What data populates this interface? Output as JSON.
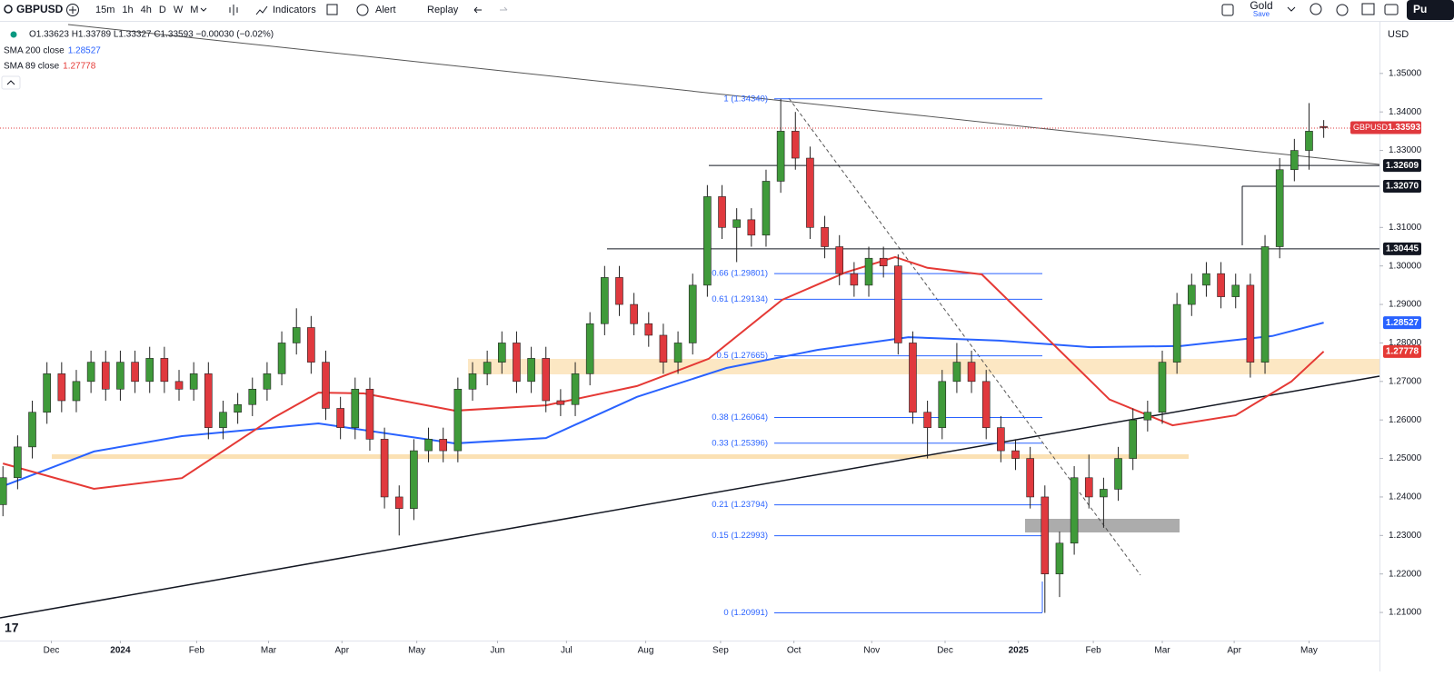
{
  "toolbar": {
    "intervals": [
      "15m",
      "1h",
      "4h",
      "D",
      "W",
      "M"
    ],
    "buttons": [
      "Indicators",
      "Alert",
      "Replay"
    ],
    "layout_name": "Gold",
    "layout_action": "Save",
    "publish": "Pu"
  },
  "chart_data": {
    "type": "candlestick",
    "currency": "USD",
    "ohlc_legend": "O1.33623 H1.33789 L1.33327 C1.33593 −0.00030 (−0.02%)",
    "series": [
      {
        "name": "GBPUSD",
        "up_color": "#3f9a3a",
        "down_color": "#e0393e",
        "open": [
          1.238,
          1.245,
          1.253,
          1.262,
          1.272,
          1.265,
          1.27,
          1.275,
          1.268,
          1.275,
          1.27,
          1.276,
          1.27,
          1.268,
          1.272,
          1.258,
          1.262,
          1.264,
          1.268,
          1.272,
          1.28,
          1.284,
          1.275,
          1.263,
          1.258,
          1.268,
          1.255,
          1.24,
          1.237,
          1.252,
          1.255,
          1.252,
          1.268,
          1.272,
          1.275,
          1.28,
          1.27,
          1.276,
          1.265,
          1.264,
          1.272,
          1.285,
          1.297,
          1.29,
          1.285,
          1.282,
          1.275,
          1.28,
          1.295,
          1.318,
          1.31,
          1.312,
          1.308,
          1.322,
          1.335,
          1.328,
          1.31,
          1.305,
          1.298,
          1.295,
          1.302,
          1.3,
          1.28,
          1.262,
          1.258,
          1.27,
          1.275,
          1.27,
          1.258,
          1.252,
          1.25,
          1.24,
          1.22,
          1.228,
          1.245,
          1.24,
          1.242,
          1.25,
          1.26,
          1.262,
          1.275,
          1.29,
          1.295,
          1.298,
          1.292,
          1.295,
          1.275,
          1.305,
          1.325,
          1.33,
          1.33623
        ],
        "high": [
          1.248,
          1.256,
          1.265,
          1.275,
          1.275,
          1.273,
          1.278,
          1.278,
          1.278,
          1.278,
          1.279,
          1.279,
          1.273,
          1.275,
          1.275,
          1.265,
          1.267,
          1.271,
          1.275,
          1.283,
          1.289,
          1.287,
          1.278,
          1.266,
          1.271,
          1.271,
          1.258,
          1.243,
          1.255,
          1.258,
          1.258,
          1.271,
          1.275,
          1.278,
          1.283,
          1.283,
          1.279,
          1.279,
          1.268,
          1.275,
          1.288,
          1.3,
          1.3,
          1.293,
          1.288,
          1.285,
          1.283,
          1.298,
          1.321,
          1.321,
          1.315,
          1.315,
          1.325,
          1.3434,
          1.34,
          1.331,
          1.313,
          1.308,
          1.301,
          1.305,
          1.305,
          1.303,
          1.283,
          1.265,
          1.273,
          1.28,
          1.278,
          1.273,
          1.261,
          1.255,
          1.253,
          1.243,
          1.231,
          1.248,
          1.251,
          1.245,
          1.253,
          1.263,
          1.265,
          1.278,
          1.293,
          1.298,
          1.301,
          1.301,
          1.298,
          1.298,
          1.308,
          1.328,
          1.333,
          1.3423,
          1.33789
        ],
        "low": [
          1.235,
          1.242,
          1.25,
          1.259,
          1.262,
          1.262,
          1.267,
          1.265,
          1.265,
          1.267,
          1.267,
          1.267,
          1.265,
          1.265,
          1.255,
          1.255,
          1.259,
          1.261,
          1.265,
          1.269,
          1.277,
          1.272,
          1.26,
          1.255,
          1.255,
          1.252,
          1.237,
          1.23,
          1.234,
          1.249,
          1.249,
          1.249,
          1.265,
          1.269,
          1.272,
          1.267,
          1.267,
          1.262,
          1.261,
          1.261,
          1.269,
          1.282,
          1.287,
          1.282,
          1.279,
          1.272,
          1.272,
          1.277,
          1.292,
          1.307,
          1.301,
          1.305,
          1.305,
          1.319,
          1.325,
          1.307,
          1.302,
          1.295,
          1.292,
          1.292,
          1.297,
          1.277,
          1.259,
          1.25,
          1.255,
          1.267,
          1.267,
          1.255,
          1.249,
          1.247,
          1.237,
          1.20991,
          1.214,
          1.225,
          1.237,
          1.232,
          1.239,
          1.247,
          1.257,
          1.259,
          1.272,
          1.287,
          1.292,
          1.289,
          1.289,
          1.271,
          1.272,
          1.302,
          1.322,
          1.325,
          1.33327
        ],
        "close": [
          1.245,
          1.253,
          1.262,
          1.272,
          1.265,
          1.27,
          1.275,
          1.268,
          1.275,
          1.27,
          1.276,
          1.27,
          1.268,
          1.272,
          1.258,
          1.262,
          1.264,
          1.268,
          1.272,
          1.28,
          1.284,
          1.275,
          1.263,
          1.258,
          1.268,
          1.255,
          1.24,
          1.237,
          1.252,
          1.255,
          1.252,
          1.268,
          1.272,
          1.275,
          1.28,
          1.27,
          1.276,
          1.265,
          1.264,
          1.272,
          1.285,
          1.297,
          1.29,
          1.285,
          1.282,
          1.275,
          1.28,
          1.295,
          1.318,
          1.31,
          1.312,
          1.308,
          1.322,
          1.335,
          1.328,
          1.31,
          1.305,
          1.298,
          1.295,
          1.302,
          1.3,
          1.28,
          1.262,
          1.258,
          1.27,
          1.275,
          1.27,
          1.258,
          1.252,
          1.25,
          1.24,
          1.22,
          1.228,
          1.245,
          1.24,
          1.242,
          1.25,
          1.26,
          1.262,
          1.275,
          1.29,
          1.295,
          1.298,
          1.292,
          1.295,
          1.275,
          1.305,
          1.325,
          1.33,
          1.335,
          1.33593
        ]
      }
    ],
    "indicators": [
      {
        "name": "SMA 200 close",
        "last": 1.28527,
        "color": "#2962ff",
        "x": [
          0,
          6.2,
          12.2,
          21.5,
          30.8,
          37,
          43.2,
          49.3,
          55.5,
          61.7,
          67.9,
          74.1,
          80.3,
          86.5,
          90
        ],
        "values": [
          1.2428,
          1.2518,
          1.2558,
          1.2591,
          1.2539,
          1.2553,
          1.266,
          1.2735,
          1.2782,
          1.2815,
          1.2806,
          1.2789,
          1.2792,
          1.2818,
          1.28527
        ]
      },
      {
        "name": "SMA 89 close",
        "last": 1.27778,
        "color": "#e53935",
        "x": [
          0,
          6.2,
          12.2,
          18.4,
          21.5,
          24.6,
          30.8,
          37,
          43.2,
          48.1,
          53.1,
          57.4,
          60.8,
          63,
          66.7,
          71,
          75.4,
          79.7,
          84,
          87.8,
          90
        ],
        "values": [
          1.2487,
          1.2421,
          1.2449,
          1.2605,
          1.2671,
          1.2669,
          1.2624,
          1.2638,
          1.2688,
          1.2759,
          1.2912,
          1.2983,
          1.3023,
          1.2995,
          1.2978,
          1.2818,
          1.2653,
          1.2586,
          1.2612,
          1.27,
          1.27778
        ]
      }
    ],
    "price_levels": [
      {
        "value": 1.32609,
        "label": "1.32609"
      },
      {
        "value": 1.3207,
        "label": "1.32070"
      },
      {
        "value": 1.30445,
        "label": "1.30445"
      }
    ],
    "fib_levels": [
      {
        "value": 1.3434,
        "label": "1 (1.34340)"
      },
      {
        "value": 1.29801,
        "label": "0.66 (1.29801)"
      },
      {
        "value": 1.29134,
        "label": "0.61 (1.29134)"
      },
      {
        "value": 1.27665,
        "label": "0.5 (1.27665)"
      },
      {
        "value": 1.26064,
        "label": "0.38 (1.26064)"
      },
      {
        "value": 1.25396,
        "label": "0.33 (1.25396)"
      },
      {
        "value": 1.23794,
        "label": "0.21 (1.23794)"
      },
      {
        "value": 1.22993,
        "label": "0.15 (1.22993)"
      },
      {
        "value": 1.20991,
        "label": "0 (1.20991)"
      }
    ],
    "xlim": [
      -0.2,
      93.8
    ],
    "ylim": [
      1.2027,
      1.3627
    ],
    "xticks": [
      {
        "value": 3.3,
        "label": "Dec"
      },
      {
        "value": 8.0,
        "label": "2024"
      },
      {
        "value": 13.2,
        "label": "Feb"
      },
      {
        "value": 18.1,
        "label": "Mar"
      },
      {
        "value": 23.1,
        "label": "Apr"
      },
      {
        "value": 28.2,
        "label": "May"
      },
      {
        "value": 33.7,
        "label": "Jun"
      },
      {
        "value": 38.4,
        "label": "Jul"
      },
      {
        "value": 43.8,
        "label": "Aug"
      },
      {
        "value": 48.9,
        "label": "Sep"
      },
      {
        "value": 53.9,
        "label": "Oct"
      },
      {
        "value": 59.2,
        "label": "Nov"
      },
      {
        "value": 64.2,
        "label": "Dec"
      },
      {
        "value": 69.2,
        "label": "2025"
      },
      {
        "value": 74.3,
        "label": "Feb"
      },
      {
        "value": 79.0,
        "label": "Mar"
      },
      {
        "value": 83.9,
        "label": "Apr"
      },
      {
        "value": 89.0,
        "label": "May"
      }
    ],
    "yticks": [
      {
        "value": 1.35,
        "label": "1.35000"
      },
      {
        "value": 1.34,
        "label": "1.34000"
      },
      {
        "value": 1.33,
        "label": "1.33000"
      },
      {
        "value": 1.31,
        "label": "1.31000"
      },
      {
        "value": 1.3,
        "label": "1.30000"
      },
      {
        "value": 1.29,
        "label": "1.29000"
      },
      {
        "value": 1.28,
        "label": "1.28000"
      },
      {
        "value": 1.27,
        "label": "1.27000"
      },
      {
        "value": 1.26,
        "label": "1.26000"
      },
      {
        "value": 1.25,
        "label": "1.25000"
      },
      {
        "value": 1.24,
        "label": "1.24000"
      },
      {
        "value": 1.23,
        "label": "1.23000"
      },
      {
        "value": 1.22,
        "label": "1.22000"
      },
      {
        "value": 1.21,
        "label": "1.21000"
      }
    ]
  }
}
